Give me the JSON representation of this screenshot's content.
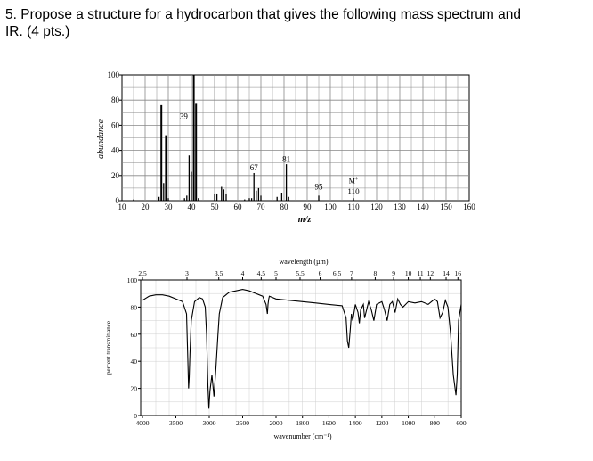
{
  "question": {
    "line1": "5. Propose a structure for a hydrocarbon that gives the following mass spectrum and",
    "line2": "IR. (4 pts.)"
  },
  "chart_data": [
    {
      "type": "bar",
      "title": "",
      "xlabel": "m/z",
      "ylabel": "abundance",
      "xlim": [
        10,
        160
      ],
      "ylim": [
        0,
        100
      ],
      "x_ticks": [
        "10",
        "20",
        "30",
        "40",
        "50",
        "60",
        "70",
        "80",
        "90",
        "100",
        "110",
        "120",
        "130",
        "140",
        "150",
        "160"
      ],
      "y_ticks": [
        "0",
        "20",
        "40",
        "60",
        "80",
        "100"
      ],
      "grid": true,
      "peaks": [
        {
          "mz": 15,
          "value": 1
        },
        {
          "mz": 26,
          "value": 3
        },
        {
          "mz": 27,
          "value": 76
        },
        {
          "mz": 28,
          "value": 14
        },
        {
          "mz": 29,
          "value": 52
        },
        {
          "mz": 30,
          "value": 2
        },
        {
          "mz": 37,
          "value": 2
        },
        {
          "mz": 38,
          "value": 4
        },
        {
          "mz": 39,
          "value": 36
        },
        {
          "mz": 40,
          "value": 23
        },
        {
          "mz": 41,
          "value": 100
        },
        {
          "mz": 42,
          "value": 77
        },
        {
          "mz": 43,
          "value": 2
        },
        {
          "mz": 50,
          "value": 5
        },
        {
          "mz": 51,
          "value": 5
        },
        {
          "mz": 53,
          "value": 11
        },
        {
          "mz": 54,
          "value": 9
        },
        {
          "mz": 55,
          "value": 5
        },
        {
          "mz": 63,
          "value": 1
        },
        {
          "mz": 65,
          "value": 2
        },
        {
          "mz": 66,
          "value": 2
        },
        {
          "mz": 67,
          "value": 22
        },
        {
          "mz": 68,
          "value": 8
        },
        {
          "mz": 69,
          "value": 10
        },
        {
          "mz": 70,
          "value": 4
        },
        {
          "mz": 77,
          "value": 3
        },
        {
          "mz": 79,
          "value": 6
        },
        {
          "mz": 81,
          "value": 29
        },
        {
          "mz": 82,
          "value": 3
        },
        {
          "mz": 95,
          "value": 4
        },
        {
          "mz": 110,
          "value": 2
        }
      ],
      "annotations": [
        {
          "text": "39",
          "mz": 39,
          "y": 65
        },
        {
          "text": "67",
          "mz": 67,
          "y": 24
        },
        {
          "text": "81",
          "mz": 81,
          "y": 31
        },
        {
          "text": "95",
          "mz": 95,
          "y": 9
        },
        {
          "text": "M+",
          "mz": 110,
          "y": 14
        },
        {
          "text": "110",
          "mz": 110,
          "y": 5
        }
      ]
    },
    {
      "type": "line",
      "title": "",
      "xlabel": "wavenumber (cm⁻¹)",
      "ylabel": "percent transmittance",
      "top_axis_label": "wavelength (µm)",
      "xlim": [
        4000,
        600
      ],
      "ylim": [
        0,
        100
      ],
      "x_ticks": [
        "4000",
        "3500",
        "3000",
        "2500",
        "2000",
        "1800",
        "1600",
        "1400",
        "1200",
        "1000",
        "800",
        "600"
      ],
      "top_ticks": [
        "2.5",
        "3",
        "3.5",
        "4",
        "4.5",
        "5",
        "5.5",
        "6",
        "6.5",
        "7",
        "8",
        "9",
        "10",
        "11",
        "12",
        "14",
        "16"
      ],
      "y_ticks": [
        "0",
        "20",
        "40",
        "60",
        "80",
        "100"
      ],
      "series": [
        {
          "name": "",
          "x": [
            4000,
            3900,
            3800,
            3700,
            3600,
            3500,
            3400,
            3340,
            3320,
            3310,
            3300,
            3290,
            3270,
            3220,
            3150,
            3100,
            3060,
            3040,
            3020,
            3005,
            2990,
            2960,
            2930,
            2900,
            2870,
            2850,
            2800,
            2700,
            2600,
            2500,
            2400,
            2300,
            2200,
            2150,
            2130,
            2120,
            2110,
            2100,
            2050,
            2000,
            1900,
            1800,
            1700,
            1600,
            1500,
            1470,
            1460,
            1450,
            1440,
            1430,
            1420,
            1400,
            1380,
            1370,
            1360,
            1340,
            1330,
            1300,
            1280,
            1260,
            1240,
            1200,
            1180,
            1160,
            1140,
            1120,
            1100,
            1080,
            1060,
            1040,
            1000,
            950,
            900,
            850,
            800,
            780,
            760,
            740,
            720,
            700,
            680,
            660,
            640,
            630,
            620,
            600
          ],
          "y": [
            85,
            88,
            89,
            89,
            88,
            86,
            84,
            75,
            40,
            20,
            28,
            45,
            70,
            84,
            87,
            86,
            80,
            60,
            22,
            5,
            18,
            30,
            14,
            35,
            60,
            75,
            87,
            91,
            92,
            93,
            92,
            90,
            88,
            82,
            75,
            82,
            86,
            88,
            87,
            86,
            85,
            84,
            83,
            82,
            81,
            72,
            55,
            50,
            62,
            75,
            70,
            82,
            76,
            68,
            78,
            82,
            72,
            84,
            78,
            70,
            82,
            84,
            78,
            70,
            82,
            84,
            76,
            86,
            82,
            80,
            84,
            83,
            84,
            82,
            86,
            84,
            72,
            76,
            85,
            80,
            60,
            30,
            15,
            30,
            70,
            82
          ]
        }
      ]
    }
  ]
}
